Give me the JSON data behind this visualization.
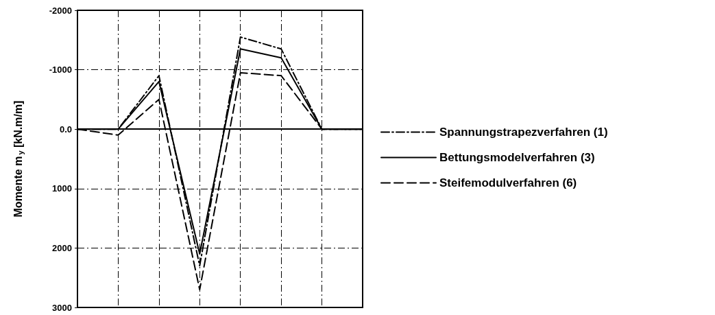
{
  "chart_data": {
    "type": "line",
    "ylabel": "Momente m$_{y}$ [kN.m/m]",
    "categories": [
      null,
      null,
      null,
      null,
      null,
      null,
      null,
      null
    ],
    "ylim": [
      3000,
      -2000
    ],
    "yticks": [
      -2000,
      -1000,
      {
        "value": 0,
        "label": "0.0"
      },
      1000,
      2000,
      3000
    ],
    "tick_labels": "y",
    "grid": true,
    "legend": "right",
    "marker": "none",
    "ref_lines": [
      {
        "axis": "y",
        "value": 0,
        "color": "#000000",
        "line_style": "solid"
      }
    ],
    "series": [
      {
        "name": "Spannungstrapezverfahren (1)",
        "color": "#000000",
        "line_style": "dashdot",
        "values": [
          0,
          0,
          -900,
          2300,
          -1550,
          -1350,
          0,
          0
        ]
      },
      {
        "name": "Bettungsmodelverfahren (3)",
        "color": "#000000",
        "line_style": "solid",
        "values": [
          0,
          0,
          -800,
          2100,
          -1350,
          -1200,
          0,
          0
        ]
      },
      {
        "name": "Steifemodulverfahren (6)",
        "color": "#000000",
        "line_style": "dashed",
        "values": [
          0,
          100,
          -500,
          2700,
          -950,
          -900,
          0,
          0
        ]
      }
    ]
  }
}
